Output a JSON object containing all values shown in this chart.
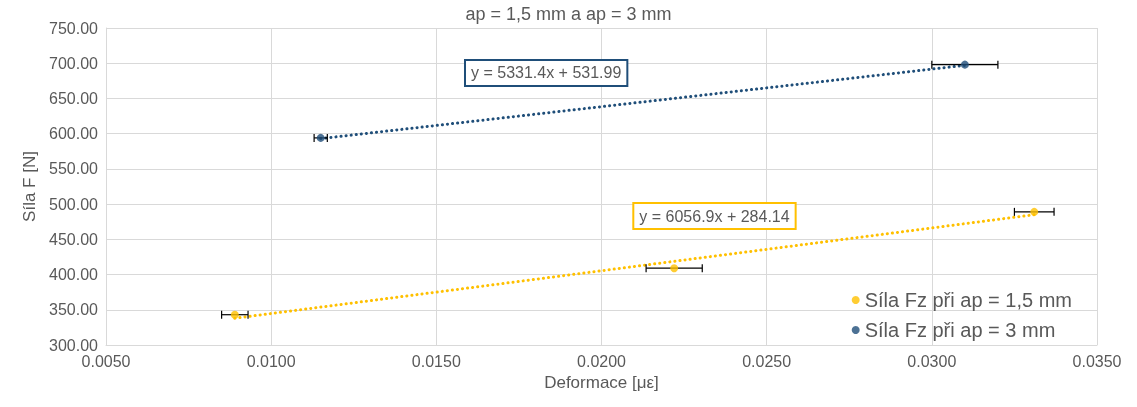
{
  "chart_data": {
    "type": "scatter",
    "title": "ap = 1,5 mm a ap = 3 mm",
    "xlabel": "Deformace [με]",
    "ylabel": "Síla F [N]",
    "series": [
      {
        "name": "Síla Fz při ap = 1,5 mm",
        "color": "#ffc000",
        "x": [
          0.0089,
          0.0222,
          0.0331
        ],
        "values": [
          343,
          409,
          489
        ],
        "xerrors": [
          0.0004,
          0.00085,
          0.0006
        ],
        "marker": "circle"
      },
      {
        "name": "Síla Fz při ap = 3 mm",
        "color": "#1f4e79",
        "x": [
          0.0115,
          0.031
        ],
        "values": [
          594,
          698
        ],
        "xerrors": [
          0.0002,
          0.001
        ],
        "marker": "circle"
      },
      {
        "type": "line",
        "color": "#ffc000",
        "x": [
          0.0089,
          0.0331
        ],
        "values": [
          338,
          485
        ],
        "line_style": "dotted",
        "marker": "none"
      },
      {
        "type": "line",
        "color": "#1f4e79",
        "x": [
          0.0115,
          0.031
        ],
        "values": [
          593,
          697
        ],
        "line_style": "dotted",
        "marker": "none"
      }
    ],
    "annotations": [
      "y = 6056.9x + 284.14",
      "y = 5331.4x + 531.99"
    ],
    "xlim": [
      0.005,
      0.035
    ],
    "xticks": [
      {
        "value": 0.005,
        "label": "0.0050"
      },
      {
        "value": 0.01,
        "label": "0.0100"
      },
      {
        "value": 0.015,
        "label": "0.0150"
      },
      {
        "value": 0.02,
        "label": "0.0200"
      },
      {
        "value": 0.025,
        "label": "0.0250"
      },
      {
        "value": 0.03,
        "label": "0.0300"
      },
      {
        "value": 0.035,
        "label": "0.0350"
      }
    ],
    "ylim": [
      300,
      750
    ],
    "yticks": [
      {
        "value": 300,
        "label": "300.00"
      },
      {
        "value": 350,
        "label": "350.00"
      },
      {
        "value": 400,
        "label": "400.00"
      },
      {
        "value": 450,
        "label": "450.00"
      },
      {
        "value": 500,
        "label": "500.00"
      },
      {
        "value": 550,
        "label": "550.00"
      },
      {
        "value": 600,
        "label": "600.00"
      },
      {
        "value": 650,
        "label": "650.00"
      },
      {
        "value": 700,
        "label": "700.00"
      },
      {
        "value": 750,
        "label": "750.00"
      }
    ],
    "grid": true,
    "legend": "bottom right"
  }
}
